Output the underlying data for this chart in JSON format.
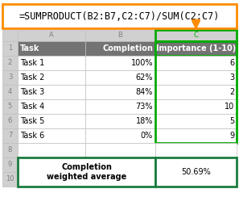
{
  "formula": "=SUMPRODUCT(B2:B7,C2:C7)/SUM(C2:C7)",
  "col_letters": [
    "A",
    "B",
    "C"
  ],
  "header_row": [
    "Task",
    "Completion",
    "Importance (1-10)"
  ],
  "tasks": [
    "Task 1",
    "Task 2",
    "Task 3",
    "Task 4",
    "Task 5",
    "Task 6"
  ],
  "completion": [
    "100%",
    "62%",
    "84%",
    "73%",
    "18%",
    "0%"
  ],
  "importance": [
    "6",
    "3",
    "2",
    "10",
    "5",
    "9"
  ],
  "result_label": "Completion\nweighted average",
  "result_value": "50.69%",
  "header_bg": "#737373",
  "header_fg": "#ffffff",
  "col_c_letter_color": "#00aa00",
  "col_c_border_color": "#00aa00",
  "formula_border_color": "#ff8c00",
  "arrow_color": "#ff8c00",
  "grid_color": "#c0c0c0",
  "row_hdr_bg": "#d0d0d0",
  "row_hdr_fg": "#808080",
  "result_border_color": "#1a7c3e",
  "white": "#ffffff",
  "formula_fontsize": 8.5,
  "header_fontsize": 7,
  "cell_fontsize": 7,
  "result_fontsize": 7,
  "rownum_fontsize": 6
}
